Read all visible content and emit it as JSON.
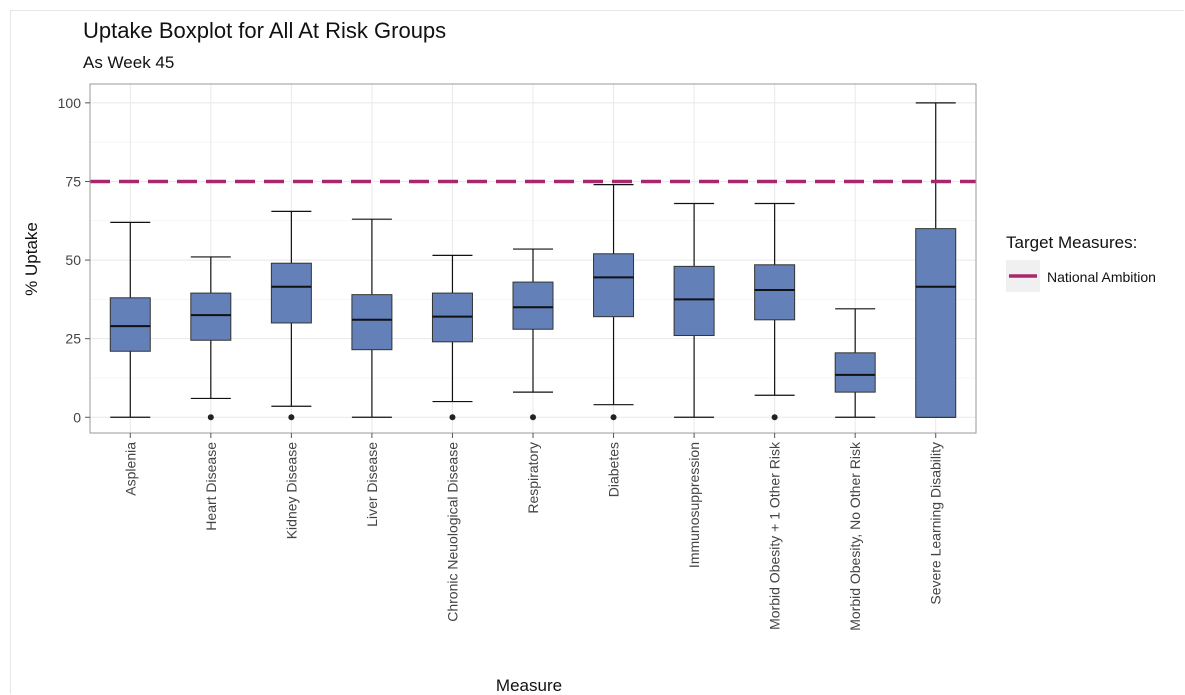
{
  "chart_data": {
    "type": "boxplot",
    "title": "Uptake Boxplot for All At Risk Groups",
    "subtitle": "As Week 45",
    "xlabel": "Measure",
    "ylabel": "% Uptake",
    "ylim": [
      -5,
      106
    ],
    "yticks": [
      0,
      25,
      50,
      75,
      100
    ],
    "grid": true,
    "box_color": "#6380b8",
    "reference_line": {
      "value": 75,
      "style": "dashed",
      "color": "#a8286f"
    },
    "legend": {
      "title": "Target Measures:",
      "placement": "right",
      "items": [
        {
          "label": "National Ambition",
          "color": "#a8286f"
        }
      ]
    },
    "categories": [
      "Asplenia",
      "Heart Disease",
      "Kidney Disease",
      "Liver Disease",
      "Chronic Neuological Disease",
      "Respiratory",
      "Diabetes",
      "Immunosuppression",
      "Morbid Obesity + 1 Other Risk",
      "Morbid Obesity, No Other Risk",
      "Severe Learning Disability"
    ],
    "boxes": [
      {
        "min": 0,
        "q1": 21,
        "median": 29,
        "q3": 38,
        "max": 62,
        "outliers": []
      },
      {
        "min": 6,
        "q1": 24.5,
        "median": 32.5,
        "q3": 39.5,
        "max": 51,
        "outliers": [
          0
        ]
      },
      {
        "min": 3.5,
        "q1": 30,
        "median": 41.5,
        "q3": 49,
        "max": 65.5,
        "outliers": [
          0
        ]
      },
      {
        "min": 0,
        "q1": 21.5,
        "median": 31,
        "q3": 39,
        "max": 63,
        "outliers": []
      },
      {
        "min": 5,
        "q1": 24,
        "median": 32,
        "q3": 39.5,
        "max": 51.5,
        "outliers": [
          0
        ]
      },
      {
        "min": 8,
        "q1": 28,
        "median": 35,
        "q3": 43,
        "max": 53.5,
        "outliers": [
          0
        ]
      },
      {
        "min": 4,
        "q1": 32,
        "median": 44.5,
        "q3": 52,
        "max": 74,
        "outliers": [
          0
        ]
      },
      {
        "min": 0,
        "q1": 26,
        "median": 37.5,
        "q3": 48,
        "max": 68,
        "outliers": []
      },
      {
        "min": 7,
        "q1": 31,
        "median": 40.5,
        "q3": 48.5,
        "max": 68,
        "outliers": [
          0
        ]
      },
      {
        "min": 0,
        "q1": 8,
        "median": 13.5,
        "q3": 20.5,
        "max": 34.5,
        "outliers": []
      },
      {
        "min": 0,
        "q1": 0,
        "median": 41.5,
        "q3": 60,
        "max": 100,
        "outliers": []
      }
    ]
  }
}
